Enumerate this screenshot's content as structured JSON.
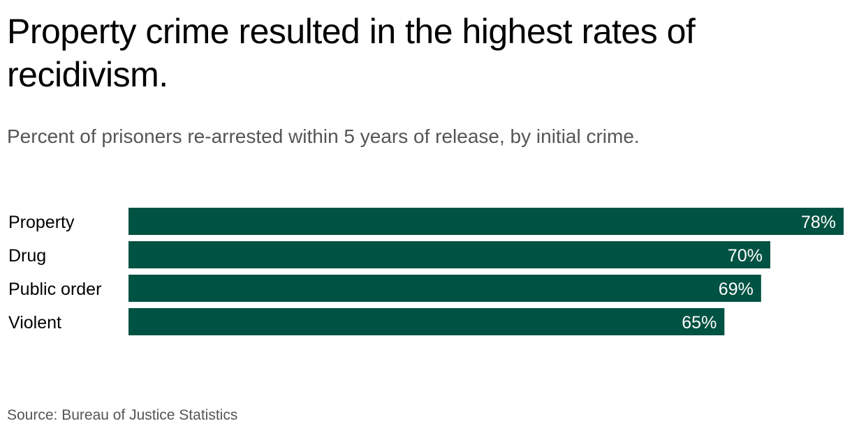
{
  "title": "Property crime resulted in the highest rates of recidivism.",
  "subtitle": "Percent of prisoners re-arrested within 5 years of release, by initial crime.",
  "source": "Source: Bureau of Justice Statistics",
  "colors": {
    "bar": "#005242",
    "value_text": "#ffffff",
    "label_text": "#000000"
  },
  "chart_data": {
    "type": "bar",
    "orientation": "horizontal",
    "categories": [
      "Property",
      "Drug",
      "Public order",
      "Violent"
    ],
    "values": [
      78,
      70,
      69,
      65
    ],
    "value_labels": [
      "78%",
      "70%",
      "69%",
      "65%"
    ],
    "title": "Property crime resulted in the highest rates of recidivism.",
    "subtitle": "Percent of prisoners re-arrested within 5 years of release, by initial crime.",
    "xlabel": "",
    "ylabel": "",
    "xlim": [
      0,
      78
    ],
    "grid": false,
    "legend": "none"
  }
}
